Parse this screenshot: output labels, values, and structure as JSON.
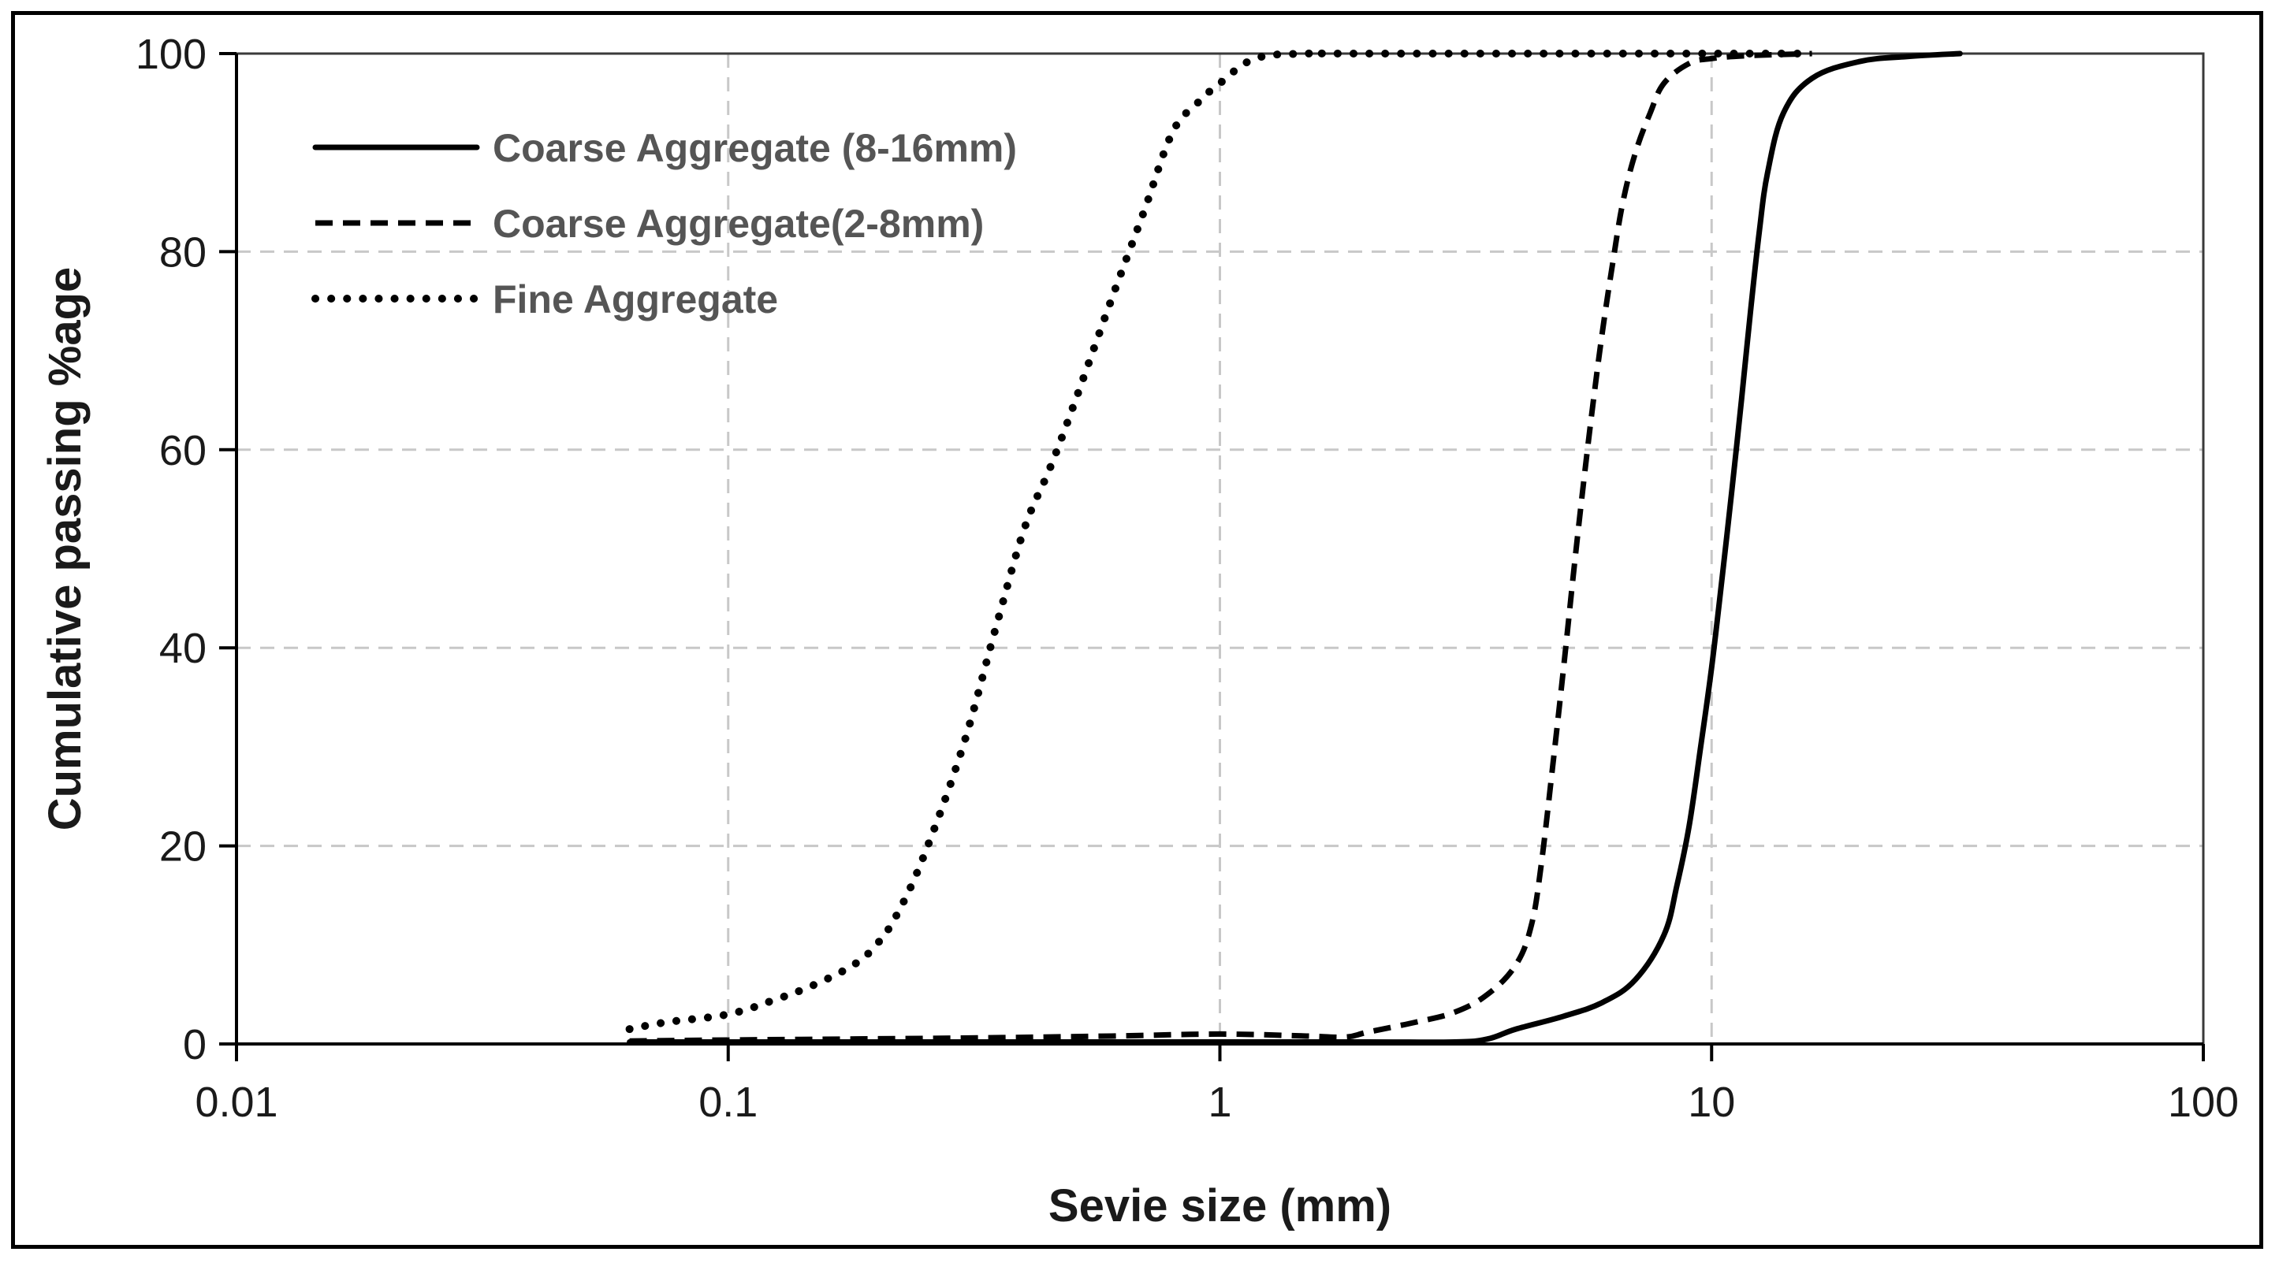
{
  "chart_data": {
    "type": "line",
    "title": "",
    "xlabel": "Sevie size (mm)",
    "ylabel": "Cumulative passing %age",
    "xscale": "log",
    "xlim": [
      0.01,
      100
    ],
    "ylim": [
      0,
      100
    ],
    "x_ticks": [
      0.01,
      0.1,
      1,
      10,
      100
    ],
    "x_tick_labels": [
      "0.01",
      "0.1",
      "1",
      "10",
      "100"
    ],
    "y_ticks": [
      0,
      20,
      40,
      60,
      80,
      100
    ],
    "y_tick_labels": [
      "0",
      "20",
      "40",
      "60",
      "80",
      "100"
    ],
    "grid": true,
    "legend_position": "top-left",
    "series": [
      {
        "name": "Coarse Aggregate (8-16mm)",
        "style": "solid",
        "color": "#000000",
        "points": [
          [
            0.063,
            0.2
          ],
          [
            0.1,
            0.2
          ],
          [
            0.3,
            0.2
          ],
          [
            1,
            0.2
          ],
          [
            2,
            0.2
          ],
          [
            3,
            0.2
          ],
          [
            3.5,
            0.5
          ],
          [
            4,
            1.5
          ],
          [
            5,
            2.8
          ],
          [
            6,
            4.2
          ],
          [
            7,
            6.5
          ],
          [
            8,
            11
          ],
          [
            8.5,
            16
          ],
          [
            9,
            22
          ],
          [
            9.5,
            30
          ],
          [
            10,
            38
          ],
          [
            10.5,
            47
          ],
          [
            11,
            56
          ],
          [
            11.5,
            65
          ],
          [
            12,
            74
          ],
          [
            12.5,
            82
          ],
          [
            13,
            88
          ],
          [
            14,
            94
          ],
          [
            16,
            97.5
          ],
          [
            20,
            99.2
          ],
          [
            25,
            99.7
          ],
          [
            32,
            100
          ]
        ]
      },
      {
        "name": "Coarse Aggregate(2-8mm)",
        "style": "dashed",
        "color": "#000000",
        "points": [
          [
            0.063,
            0.3
          ],
          [
            0.1,
            0.4
          ],
          [
            0.3,
            0.6
          ],
          [
            0.6,
            0.8
          ],
          [
            1,
            1.0
          ],
          [
            1.5,
            0.8
          ],
          [
            1.8,
            0.7
          ],
          [
            2,
            1.2
          ],
          [
            2.5,
            2.2
          ],
          [
            3,
            3.2
          ],
          [
            3.5,
            5
          ],
          [
            4,
            8
          ],
          [
            4.3,
            12
          ],
          [
            4.5,
            18
          ],
          [
            4.75,
            28
          ],
          [
            5,
            38
          ],
          [
            5.25,
            48
          ],
          [
            5.5,
            57
          ],
          [
            5.75,
            65
          ],
          [
            6,
            72
          ],
          [
            6.3,
            79
          ],
          [
            6.6,
            85
          ],
          [
            7,
            90
          ],
          [
            7.5,
            94
          ],
          [
            8,
            97
          ],
          [
            9,
            99
          ],
          [
            10,
            99.5
          ],
          [
            12,
            99.8
          ],
          [
            16,
            100
          ]
        ]
      },
      {
        "name": "Fine Aggregate",
        "style": "dotted",
        "color": "#000000",
        "points": [
          [
            0.063,
            1.5
          ],
          [
            0.075,
            2.2
          ],
          [
            0.1,
            3
          ],
          [
            0.125,
            4.5
          ],
          [
            0.15,
            6
          ],
          [
            0.18,
            8
          ],
          [
            0.2,
            10
          ],
          [
            0.22,
            13
          ],
          [
            0.25,
            19
          ],
          [
            0.3,
            30
          ],
          [
            0.35,
            42
          ],
          [
            0.4,
            52
          ],
          [
            0.45,
            58
          ],
          [
            0.5,
            64
          ],
          [
            0.6,
            75
          ],
          [
            0.7,
            84
          ],
          [
            0.8,
            92
          ],
          [
            0.9,
            95
          ],
          [
            1,
            97
          ],
          [
            1.18,
            99.5
          ],
          [
            1.5,
            100
          ],
          [
            2,
            100
          ],
          [
            16,
            100
          ]
        ]
      }
    ]
  }
}
